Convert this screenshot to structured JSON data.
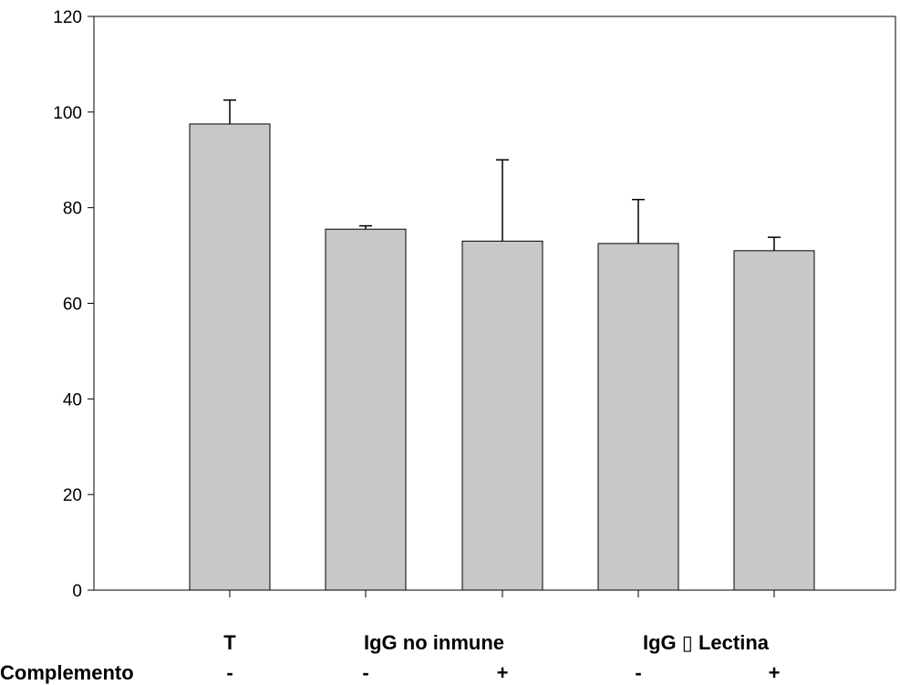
{
  "chart_data": {
    "type": "bar",
    "categories": [
      "T",
      "IgG no inmune -",
      "IgG no inmune +",
      "IgG  Lectina -",
      "IgG  Lectina +"
    ],
    "values": [
      97.5,
      75.5,
      73,
      72.5,
      71
    ],
    "errors": [
      5,
      0.7,
      17,
      9.2,
      2.8
    ],
    "ylim": [
      0,
      120
    ],
    "yticks": [
      0,
      20,
      40,
      60,
      80,
      100,
      120
    ],
    "bar_color": "#c8c8c8",
    "grid": false,
    "group_labels": [
      "T",
      "IgG no inmune",
      "IgG ▯ Lectina"
    ],
    "row_label": "Complemento",
    "complement_signs": [
      "-",
      "-",
      "+",
      "-",
      "+"
    ]
  }
}
